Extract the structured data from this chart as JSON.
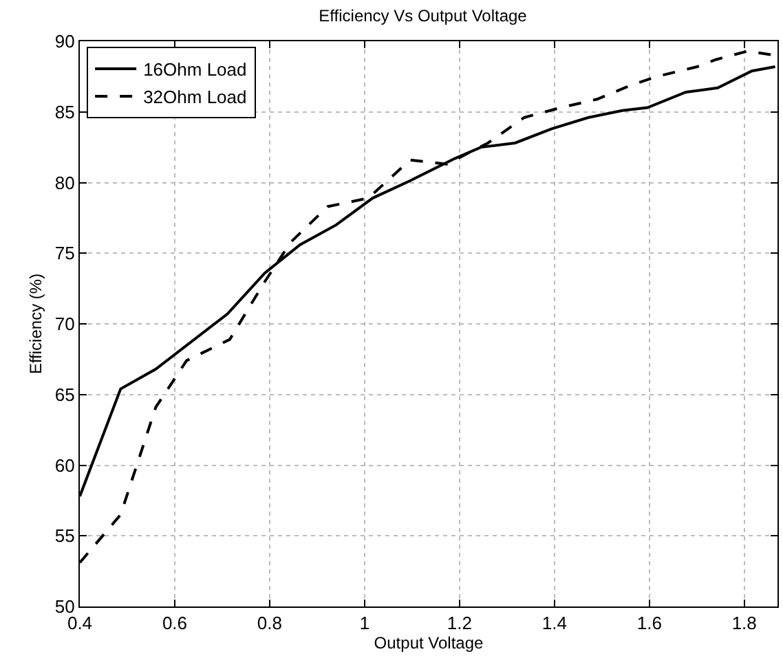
{
  "chart_data": {
    "type": "line",
    "title": "Efficiency Vs Output Voltage",
    "xlabel": "Output Voltage",
    "ylabel": "Efficiency (%)",
    "xlim": [
      0.4,
      1.87
    ],
    "xticks": [
      0.4,
      0.6,
      0.8,
      1,
      1.2,
      1.4,
      1.6,
      1.8
    ],
    "ylim": [
      50,
      90
    ],
    "yticks": [
      50,
      55,
      60,
      65,
      70,
      75,
      80,
      85,
      90
    ],
    "grid": true,
    "legend": "top left",
    "marker": "none",
    "series": [
      {
        "name": "16Ohm Load",
        "color": "#000000",
        "line_style": "solid",
        "x": [
          0.4,
          0.486,
          0.56,
          0.711,
          0.79,
          0.864,
          0.94,
          1.017,
          1.094,
          1.19,
          1.245,
          1.317,
          1.394,
          1.471,
          1.543,
          1.596,
          1.677,
          1.744,
          1.816,
          1.865
        ],
        "values": [
          57.8,
          65.4,
          66.8,
          70.7,
          73.6,
          75.6,
          77.0,
          78.9,
          80.1,
          81.7,
          82.5,
          82.8,
          83.8,
          84.6,
          85.1,
          85.3,
          86.4,
          86.7,
          87.9,
          88.2
        ]
      },
      {
        "name": "32Ohm Load",
        "color": "#000000",
        "line_style": "dashed",
        "x": [
          0.4,
          0.486,
          0.56,
          0.625,
          0.716,
          0.788,
          0.845,
          0.922,
          1.008,
          1.096,
          1.173,
          1.26,
          1.336,
          1.413,
          1.49,
          1.562,
          1.615,
          1.701,
          1.74,
          1.807,
          1.865
        ],
        "values": [
          53.1,
          56.5,
          64.1,
          67.4,
          68.9,
          72.9,
          75.8,
          78.3,
          78.9,
          81.6,
          81.3,
          82.8,
          84.6,
          85.3,
          85.9,
          86.9,
          87.5,
          88.2,
          88.7,
          89.3,
          89.0
        ]
      }
    ]
  }
}
